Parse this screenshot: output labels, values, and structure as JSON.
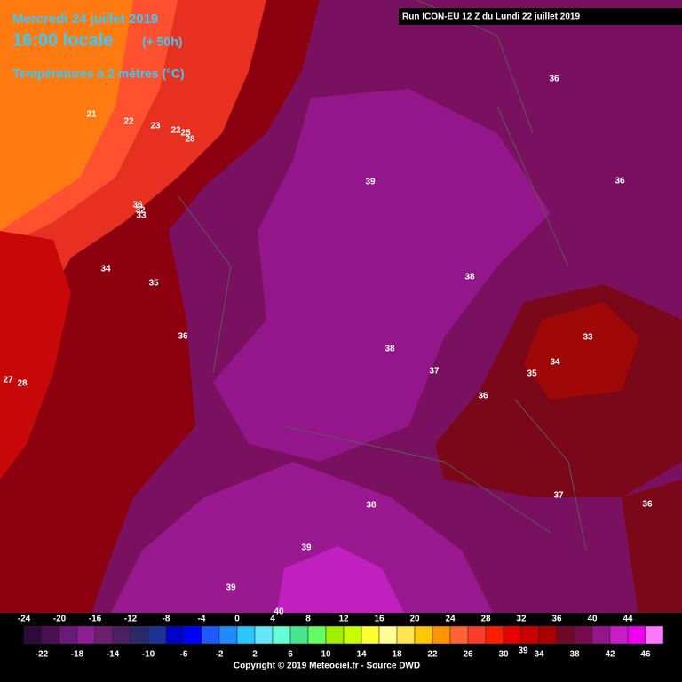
{
  "header": {
    "date": "Mercredi 24 juillet 2019",
    "time": "16:00 locale",
    "lead": "(+ 50h)",
    "parameter": "Températures à 2 mètres (°C)",
    "run": "Run ICON-EU 12 Z du Lundi 22 juillet 2019"
  },
  "contour_labels": [
    36,
    21,
    22,
    23,
    22,
    25,
    28,
    39,
    36,
    36,
    32,
    33,
    34,
    35,
    38,
    33,
    36,
    38,
    34,
    37,
    35,
    27,
    28,
    36,
    37,
    38,
    36,
    39,
    39,
    40,
    39
  ],
  "scale": {
    "values": [
      -24,
      -22,
      -20,
      -18,
      -16,
      -14,
      -12,
      -10,
      -8,
      -6,
      -4,
      -2,
      0,
      2,
      4,
      6,
      8,
      10,
      12,
      14,
      16,
      18,
      20,
      22,
      24,
      26,
      28,
      30,
      32,
      34,
      36,
      38,
      40,
      42,
      44,
      46
    ],
    "colors": [
      "#2d0a3c",
      "#4b1050",
      "#6a1a78",
      "#8c1e96",
      "#6e1e6e",
      "#4b2060",
      "#2a2a6a",
      "#1e3296",
      "#0000c8",
      "#0000ff",
      "#1e5aff",
      "#1e8cff",
      "#28c8ff",
      "#64e6ff",
      "#64ffd2",
      "#46e68c",
      "#64ff64",
      "#a0f000",
      "#c8ff00",
      "#ffff32",
      "#ffff96",
      "#ffe650",
      "#ffc800",
      "#ff9600",
      "#ff6432",
      "#ff3c28",
      "#ff1e00",
      "#e60000",
      "#c80000",
      "#aa0000",
      "#6e0a28",
      "#780a50",
      "#96148c",
      "#c81ec8",
      "#f000f0",
      "#ff78ff"
    ]
  },
  "footer": {
    "copyright": "Copyright © 2019 Meteociel.fr - Source DWD"
  }
}
